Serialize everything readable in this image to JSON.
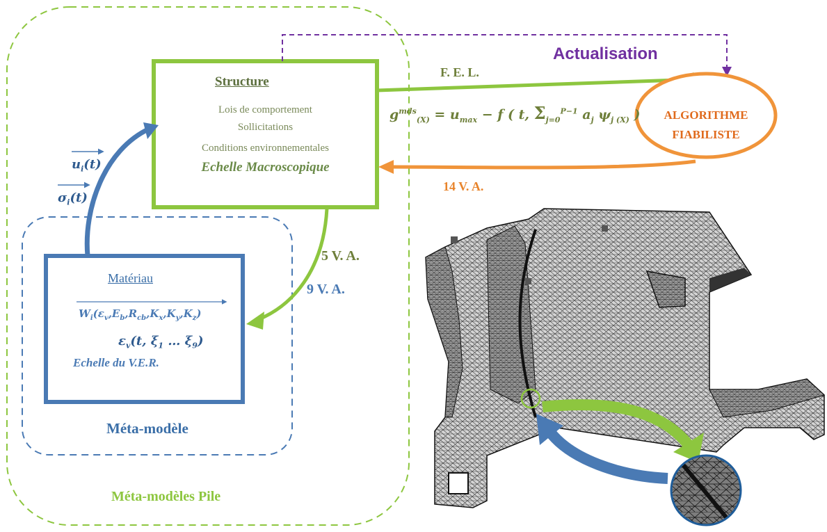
{
  "structure": {
    "title": "Structure",
    "lines": [
      "Lois de comportement",
      "Sollicitations",
      "Conditions environnementales"
    ],
    "scale": "Echelle Macroscopique"
  },
  "material": {
    "title": "Matériau",
    "w_formula": "W",
    "w_args": "(εv,Eb,Rcb,Kx,Ky,Kz)",
    "eps_formula": "εv(t,ξ1 …ξ9)",
    "scale": "Echelle du V.E.R."
  },
  "labels": {
    "meta_model": "Méta-modèle",
    "meta_models_pile": "Méta-modèles Pile",
    "va5": "5 V. A.",
    "va9": "9 V. A.",
    "va14": "14 V. A.",
    "fel": "F. E. L.",
    "actualisation": "Actualisation",
    "algo_line1": "ALGORITHME",
    "algo_line2": "FIABILISTE"
  },
  "equation": "g(X)mds = umax − f(t, Σ aj ψj (X))",
  "vectors": {
    "u": "ui(t)",
    "sigma": "σi(t)"
  },
  "colors": {
    "green": "#8dc63f",
    "dark_green": "#6e7f3a",
    "blue": "#4a7ab4",
    "orange": "#f0943a",
    "purple": "#7030a0"
  }
}
